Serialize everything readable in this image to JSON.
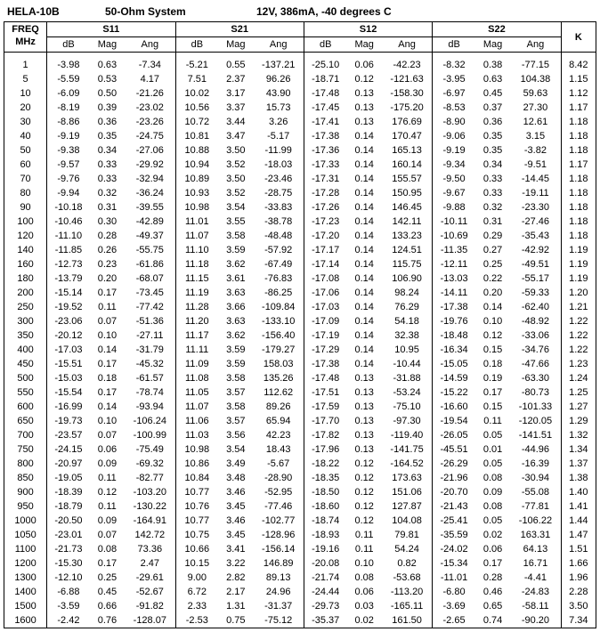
{
  "header": {
    "part": "HELA-10B",
    "system": "50-Ohm System",
    "conditions": "12V, 386mA,  -40 degrees C"
  },
  "columns": {
    "freq_l1": "FREQ",
    "freq_l2": "MHz",
    "s11": "S11",
    "s21": "S21",
    "s12": "S12",
    "s22": "S22",
    "k": "K",
    "db": "dB",
    "mag": "Mag",
    "ang": "Ang"
  },
  "rows": [
    {
      "f": "1",
      "s11db": "-3.98",
      "s11mag": "0.63",
      "s11ang": "-7.34",
      "s21db": "-5.21",
      "s21mag": "0.55",
      "s21ang": "-137.21",
      "s12db": "-25.10",
      "s12mag": "0.06",
      "s12ang": "-42.23",
      "s22db": "-8.32",
      "s22mag": "0.38",
      "s22ang": "-77.15",
      "k": "8.42"
    },
    {
      "f": "5",
      "s11db": "-5.59",
      "s11mag": "0.53",
      "s11ang": "4.17",
      "s21db": "7.51",
      "s21mag": "2.37",
      "s21ang": "96.26",
      "s12db": "-18.71",
      "s12mag": "0.12",
      "s12ang": "-121.63",
      "s22db": "-3.95",
      "s22mag": "0.63",
      "s22ang": "104.38",
      "k": "1.15"
    },
    {
      "f": "10",
      "s11db": "-6.09",
      "s11mag": "0.50",
      "s11ang": "-21.26",
      "s21db": "10.02",
      "s21mag": "3.17",
      "s21ang": "43.90",
      "s12db": "-17.48",
      "s12mag": "0.13",
      "s12ang": "-158.30",
      "s22db": "-6.97",
      "s22mag": "0.45",
      "s22ang": "59.63",
      "k": "1.12"
    },
    {
      "f": "20",
      "s11db": "-8.19",
      "s11mag": "0.39",
      "s11ang": "-23.02",
      "s21db": "10.56",
      "s21mag": "3.37",
      "s21ang": "15.73",
      "s12db": "-17.45",
      "s12mag": "0.13",
      "s12ang": "-175.20",
      "s22db": "-8.53",
      "s22mag": "0.37",
      "s22ang": "27.30",
      "k": "1.17"
    },
    {
      "f": "30",
      "s11db": "-8.86",
      "s11mag": "0.36",
      "s11ang": "-23.26",
      "s21db": "10.72",
      "s21mag": "3.44",
      "s21ang": "3.26",
      "s12db": "-17.41",
      "s12mag": "0.13",
      "s12ang": "176.69",
      "s22db": "-8.90",
      "s22mag": "0.36",
      "s22ang": "12.61",
      "k": "1.18"
    },
    {
      "f": "40",
      "s11db": "-9.19",
      "s11mag": "0.35",
      "s11ang": "-24.75",
      "s21db": "10.81",
      "s21mag": "3.47",
      "s21ang": "-5.17",
      "s12db": "-17.38",
      "s12mag": "0.14",
      "s12ang": "170.47",
      "s22db": "-9.06",
      "s22mag": "0.35",
      "s22ang": "3.15",
      "k": "1.18"
    },
    {
      "f": "50",
      "s11db": "-9.38",
      "s11mag": "0.34",
      "s11ang": "-27.06",
      "s21db": "10.88",
      "s21mag": "3.50",
      "s21ang": "-11.99",
      "s12db": "-17.36",
      "s12mag": "0.14",
      "s12ang": "165.13",
      "s22db": "-9.19",
      "s22mag": "0.35",
      "s22ang": "-3.82",
      "k": "1.18"
    },
    {
      "f": "60",
      "s11db": "-9.57",
      "s11mag": "0.33",
      "s11ang": "-29.92",
      "s21db": "10.94",
      "s21mag": "3.52",
      "s21ang": "-18.03",
      "s12db": "-17.33",
      "s12mag": "0.14",
      "s12ang": "160.14",
      "s22db": "-9.34",
      "s22mag": "0.34",
      "s22ang": "-9.51",
      "k": "1.17"
    },
    {
      "f": "70",
      "s11db": "-9.76",
      "s11mag": "0.33",
      "s11ang": "-32.94",
      "s21db": "10.89",
      "s21mag": "3.50",
      "s21ang": "-23.46",
      "s12db": "-17.31",
      "s12mag": "0.14",
      "s12ang": "155.57",
      "s22db": "-9.50",
      "s22mag": "0.33",
      "s22ang": "-14.45",
      "k": "1.18"
    },
    {
      "f": "80",
      "s11db": "-9.94",
      "s11mag": "0.32",
      "s11ang": "-36.24",
      "s21db": "10.93",
      "s21mag": "3.52",
      "s21ang": "-28.75",
      "s12db": "-17.28",
      "s12mag": "0.14",
      "s12ang": "150.95",
      "s22db": "-9.67",
      "s22mag": "0.33",
      "s22ang": "-19.11",
      "k": "1.18"
    },
    {
      "f": "90",
      "s11db": "-10.18",
      "s11mag": "0.31",
      "s11ang": "-39.55",
      "s21db": "10.98",
      "s21mag": "3.54",
      "s21ang": "-33.83",
      "s12db": "-17.26",
      "s12mag": "0.14",
      "s12ang": "146.45",
      "s22db": "-9.88",
      "s22mag": "0.32",
      "s22ang": "-23.30",
      "k": "1.18"
    },
    {
      "f": "100",
      "s11db": "-10.46",
      "s11mag": "0.30",
      "s11ang": "-42.89",
      "s21db": "11.01",
      "s21mag": "3.55",
      "s21ang": "-38.78",
      "s12db": "-17.23",
      "s12mag": "0.14",
      "s12ang": "142.11",
      "s22db": "-10.11",
      "s22mag": "0.31",
      "s22ang": "-27.46",
      "k": "1.18"
    },
    {
      "f": "120",
      "s11db": "-11.10",
      "s11mag": "0.28",
      "s11ang": "-49.37",
      "s21db": "11.07",
      "s21mag": "3.58",
      "s21ang": "-48.48",
      "s12db": "-17.20",
      "s12mag": "0.14",
      "s12ang": "133.23",
      "s22db": "-10.69",
      "s22mag": "0.29",
      "s22ang": "-35.43",
      "k": "1.18"
    },
    {
      "f": "140",
      "s11db": "-11.85",
      "s11mag": "0.26",
      "s11ang": "-55.75",
      "s21db": "11.10",
      "s21mag": "3.59",
      "s21ang": "-57.92",
      "s12db": "-17.17",
      "s12mag": "0.14",
      "s12ang": "124.51",
      "s22db": "-11.35",
      "s22mag": "0.27",
      "s22ang": "-42.92",
      "k": "1.19"
    },
    {
      "f": "160",
      "s11db": "-12.73",
      "s11mag": "0.23",
      "s11ang": "-61.86",
      "s21db": "11.18",
      "s21mag": "3.62",
      "s21ang": "-67.49",
      "s12db": "-17.14",
      "s12mag": "0.14",
      "s12ang": "115.75",
      "s22db": "-12.11",
      "s22mag": "0.25",
      "s22ang": "-49.51",
      "k": "1.19"
    },
    {
      "f": "180",
      "s11db": "-13.79",
      "s11mag": "0.20",
      "s11ang": "-68.07",
      "s21db": "11.15",
      "s21mag": "3.61",
      "s21ang": "-76.83",
      "s12db": "-17.08",
      "s12mag": "0.14",
      "s12ang": "106.90",
      "s22db": "-13.03",
      "s22mag": "0.22",
      "s22ang": "-55.17",
      "k": "1.19"
    },
    {
      "f": "200",
      "s11db": "-15.14",
      "s11mag": "0.17",
      "s11ang": "-73.45",
      "s21db": "11.19",
      "s21mag": "3.63",
      "s21ang": "-86.25",
      "s12db": "-17.06",
      "s12mag": "0.14",
      "s12ang": "98.24",
      "s22db": "-14.11",
      "s22mag": "0.20",
      "s22ang": "-59.33",
      "k": "1.20"
    },
    {
      "f": "250",
      "s11db": "-19.52",
      "s11mag": "0.11",
      "s11ang": "-77.42",
      "s21db": "11.28",
      "s21mag": "3.66",
      "s21ang": "-109.84",
      "s12db": "-17.03",
      "s12mag": "0.14",
      "s12ang": "76.29",
      "s22db": "-17.38",
      "s22mag": "0.14",
      "s22ang": "-62.40",
      "k": "1.21"
    },
    {
      "f": "300",
      "s11db": "-23.06",
      "s11mag": "0.07",
      "s11ang": "-51.36",
      "s21db": "11.20",
      "s21mag": "3.63",
      "s21ang": "-133.10",
      "s12db": "-17.09",
      "s12mag": "0.14",
      "s12ang": "54.18",
      "s22db": "-19.76",
      "s22mag": "0.10",
      "s22ang": "-48.92",
      "k": "1.22"
    },
    {
      "f": "350",
      "s11db": "-20.12",
      "s11mag": "0.10",
      "s11ang": "-27.11",
      "s21db": "11.17",
      "s21mag": "3.62",
      "s21ang": "-156.40",
      "s12db": "-17.19",
      "s12mag": "0.14",
      "s12ang": "32.38",
      "s22db": "-18.48",
      "s22mag": "0.12",
      "s22ang": "-33.06",
      "k": "1.22"
    },
    {
      "f": "400",
      "s11db": "-17.03",
      "s11mag": "0.14",
      "s11ang": "-31.79",
      "s21db": "11.11",
      "s21mag": "3.59",
      "s21ang": "-179.27",
      "s12db": "-17.29",
      "s12mag": "0.14",
      "s12ang": "10.95",
      "s22db": "-16.34",
      "s22mag": "0.15",
      "s22ang": "-34.76",
      "k": "1.22"
    },
    {
      "f": "450",
      "s11db": "-15.51",
      "s11mag": "0.17",
      "s11ang": "-45.32",
      "s21db": "11.09",
      "s21mag": "3.59",
      "s21ang": "158.03",
      "s12db": "-17.38",
      "s12mag": "0.14",
      "s12ang": "-10.44",
      "s22db": "-15.05",
      "s22mag": "0.18",
      "s22ang": "-47.66",
      "k": "1.23"
    },
    {
      "f": "500",
      "s11db": "-15.03",
      "s11mag": "0.18",
      "s11ang": "-61.57",
      "s21db": "11.08",
      "s21mag": "3.58",
      "s21ang": "135.26",
      "s12db": "-17.48",
      "s12mag": "0.13",
      "s12ang": "-31.88",
      "s22db": "-14.59",
      "s22mag": "0.19",
      "s22ang": "-63.30",
      "k": "1.24"
    },
    {
      "f": "550",
      "s11db": "-15.54",
      "s11mag": "0.17",
      "s11ang": "-78.74",
      "s21db": "11.05",
      "s21mag": "3.57",
      "s21ang": "112.62",
      "s12db": "-17.51",
      "s12mag": "0.13",
      "s12ang": "-53.24",
      "s22db": "-15.22",
      "s22mag": "0.17",
      "s22ang": "-80.73",
      "k": "1.25"
    },
    {
      "f": "600",
      "s11db": "-16.99",
      "s11mag": "0.14",
      "s11ang": "-93.94",
      "s21db": "11.07",
      "s21mag": "3.58",
      "s21ang": "89.26",
      "s12db": "-17.59",
      "s12mag": "0.13",
      "s12ang": "-75.10",
      "s22db": "-16.60",
      "s22mag": "0.15",
      "s22ang": "-101.33",
      "k": "1.27"
    },
    {
      "f": "650",
      "s11db": "-19.73",
      "s11mag": "0.10",
      "s11ang": "-106.24",
      "s21db": "11.06",
      "s21mag": "3.57",
      "s21ang": "65.94",
      "s12db": "-17.70",
      "s12mag": "0.13",
      "s12ang": "-97.30",
      "s22db": "-19.54",
      "s22mag": "0.11",
      "s22ang": "-120.05",
      "k": "1.29"
    },
    {
      "f": "700",
      "s11db": "-23.57",
      "s11mag": "0.07",
      "s11ang": "-100.99",
      "s21db": "11.03",
      "s21mag": "3.56",
      "s21ang": "42.23",
      "s12db": "-17.82",
      "s12mag": "0.13",
      "s12ang": "-119.40",
      "s22db": "-26.05",
      "s22mag": "0.05",
      "s22ang": "-141.51",
      "k": "1.32"
    },
    {
      "f": "750",
      "s11db": "-24.15",
      "s11mag": "0.06",
      "s11ang": "-75.49",
      "s21db": "10.98",
      "s21mag": "3.54",
      "s21ang": "18.43",
      "s12db": "-17.96",
      "s12mag": "0.13",
      "s12ang": "-141.75",
      "s22db": "-45.51",
      "s22mag": "0.01",
      "s22ang": "-44.96",
      "k": "1.34"
    },
    {
      "f": "800",
      "s11db": "-20.97",
      "s11mag": "0.09",
      "s11ang": "-69.32",
      "s21db": "10.86",
      "s21mag": "3.49",
      "s21ang": "-5.67",
      "s12db": "-18.22",
      "s12mag": "0.12",
      "s12ang": "-164.52",
      "s22db": "-26.29",
      "s22mag": "0.05",
      "s22ang": "-16.39",
      "k": "1.37"
    },
    {
      "f": "850",
      "s11db": "-19.05",
      "s11mag": "0.11",
      "s11ang": "-82.77",
      "s21db": "10.84",
      "s21mag": "3.48",
      "s21ang": "-28.90",
      "s12db": "-18.35",
      "s12mag": "0.12",
      "s12ang": "173.63",
      "s22db": "-21.96",
      "s22mag": "0.08",
      "s22ang": "-30.94",
      "k": "1.38"
    },
    {
      "f": "900",
      "s11db": "-18.39",
      "s11mag": "0.12",
      "s11ang": "-103.20",
      "s21db": "10.77",
      "s21mag": "3.46",
      "s21ang": "-52.95",
      "s12db": "-18.50",
      "s12mag": "0.12",
      "s12ang": "151.06",
      "s22db": "-20.70",
      "s22mag": "0.09",
      "s22ang": "-55.08",
      "k": "1.40"
    },
    {
      "f": "950",
      "s11db": "-18.79",
      "s11mag": "0.11",
      "s11ang": "-130.22",
      "s21db": "10.76",
      "s21mag": "3.45",
      "s21ang": "-77.46",
      "s12db": "-18.60",
      "s12mag": "0.12",
      "s12ang": "127.87",
      "s22db": "-21.43",
      "s22mag": "0.08",
      "s22ang": "-77.81",
      "k": "1.41"
    },
    {
      "f": "1000",
      "s11db": "-20.50",
      "s11mag": "0.09",
      "s11ang": "-164.91",
      "s21db": "10.77",
      "s21mag": "3.46",
      "s21ang": "-102.77",
      "s12db": "-18.74",
      "s12mag": "0.12",
      "s12ang": "104.08",
      "s22db": "-25.41",
      "s22mag": "0.05",
      "s22ang": "-106.22",
      "k": "1.44"
    },
    {
      "f": "1050",
      "s11db": "-23.01",
      "s11mag": "0.07",
      "s11ang": "142.72",
      "s21db": "10.75",
      "s21mag": "3.45",
      "s21ang": "-128.96",
      "s12db": "-18.93",
      "s12mag": "0.11",
      "s12ang": "79.81",
      "s22db": "-35.59",
      "s22mag": "0.02",
      "s22ang": "163.31",
      "k": "1.47"
    },
    {
      "f": "1100",
      "s11db": "-21.73",
      "s11mag": "0.08",
      "s11ang": "73.36",
      "s21db": "10.66",
      "s21mag": "3.41",
      "s21ang": "-156.14",
      "s12db": "-19.16",
      "s12mag": "0.11",
      "s12ang": "54.24",
      "s22db": "-24.02",
      "s22mag": "0.06",
      "s22ang": "64.13",
      "k": "1.51"
    },
    {
      "f": "1200",
      "s11db": "-15.30",
      "s11mag": "0.17",
      "s11ang": "2.47",
      "s21db": "10.15",
      "s21mag": "3.22",
      "s21ang": "146.89",
      "s12db": "-20.08",
      "s12mag": "0.10",
      "s12ang": "0.82",
      "s22db": "-15.34",
      "s22mag": "0.17",
      "s22ang": "16.71",
      "k": "1.66"
    },
    {
      "f": "1300",
      "s11db": "-12.10",
      "s11mag": "0.25",
      "s11ang": "-29.61",
      "s21db": "9.00",
      "s21mag": "2.82",
      "s21ang": "89.13",
      "s12db": "-21.74",
      "s12mag": "0.08",
      "s12ang": "-53.68",
      "s22db": "-11.01",
      "s22mag": "0.28",
      "s22ang": "-4.41",
      "k": "1.96"
    },
    {
      "f": "1400",
      "s11db": "-6.88",
      "s11mag": "0.45",
      "s11ang": "-52.67",
      "s21db": "6.72",
      "s21mag": "2.17",
      "s21ang": "24.96",
      "s12db": "-24.44",
      "s12mag": "0.06",
      "s12ang": "-113.20",
      "s22db": "-6.80",
      "s22mag": "0.46",
      "s22ang": "-24.83",
      "k": "2.28"
    },
    {
      "f": "1500",
      "s11db": "-3.59",
      "s11mag": "0.66",
      "s11ang": "-91.82",
      "s21db": "2.33",
      "s21mag": "1.31",
      "s21ang": "-31.37",
      "s12db": "-29.73",
      "s12mag": "0.03",
      "s12ang": "-165.11",
      "s22db": "-3.69",
      "s22mag": "0.65",
      "s22ang": "-58.11",
      "k": "3.50"
    },
    {
      "f": "1600",
      "s11db": "-2.42",
      "s11mag": "0.76",
      "s11ang": "-128.07",
      "s21db": "-2.53",
      "s21mag": "0.75",
      "s21ang": "-75.12",
      "s12db": "-35.37",
      "s12mag": "0.02",
      "s12ang": "161.50",
      "s22db": "-2.65",
      "s22mag": "0.74",
      "s22ang": "-90.20",
      "k": "7.34"
    }
  ]
}
